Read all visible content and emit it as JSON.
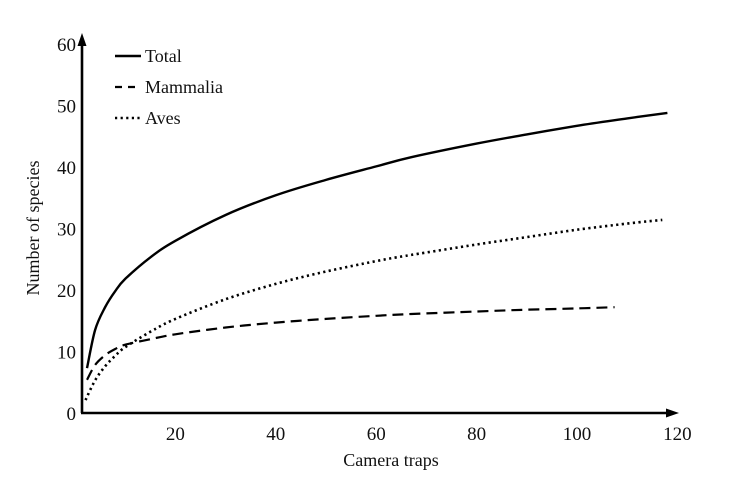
{
  "chart_data": {
    "type": "line",
    "title": "",
    "xlabel": "Camera traps",
    "ylabel": "Number of species",
    "xlim": [
      0,
      120
    ],
    "ylim": [
      0,
      60
    ],
    "xticks": [
      20,
      40,
      60,
      80,
      100,
      120
    ],
    "yticks": [
      0,
      10,
      20,
      30,
      40,
      50,
      60
    ],
    "grid": false,
    "legend": {
      "position": "top-left"
    },
    "series": [
      {
        "name": "Total",
        "style": "solid",
        "x": [
          2.4,
          4,
          6,
          8,
          10,
          15,
          20,
          30,
          40,
          50,
          60,
          67,
          80,
          90,
          100,
          110,
          118
        ],
        "y": [
          7.3,
          13.5,
          17.2,
          19.8,
          21.8,
          25.3,
          28.0,
          32.2,
          35.4,
          37.9,
          40.1,
          41.6,
          43.8,
          45.3,
          46.7,
          47.9,
          48.8
        ]
      },
      {
        "name": "Mammalia",
        "style": "dashed",
        "x": [
          2.4,
          4,
          6,
          8,
          10,
          15,
          20,
          30,
          40,
          50,
          60,
          67,
          80,
          90,
          100,
          107.5
        ],
        "y": [
          5.4,
          7.8,
          9.4,
          10.4,
          11.1,
          12.0,
          12.8,
          13.9,
          14.7,
          15.3,
          15.8,
          16.1,
          16.5,
          16.8,
          17.0,
          17.2
        ]
      },
      {
        "name": "Aves",
        "style": "dotted",
        "x": [
          2.1,
          4,
          6,
          8,
          10,
          15,
          20,
          30,
          40,
          50,
          60,
          67,
          80,
          90,
          100,
          110,
          117
        ],
        "y": [
          2.1,
          5.3,
          7.6,
          9.3,
          10.7,
          13.2,
          15.3,
          18.5,
          21.0,
          23.0,
          24.7,
          25.7,
          27.4,
          28.6,
          29.8,
          30.8,
          31.4
        ]
      }
    ]
  }
}
